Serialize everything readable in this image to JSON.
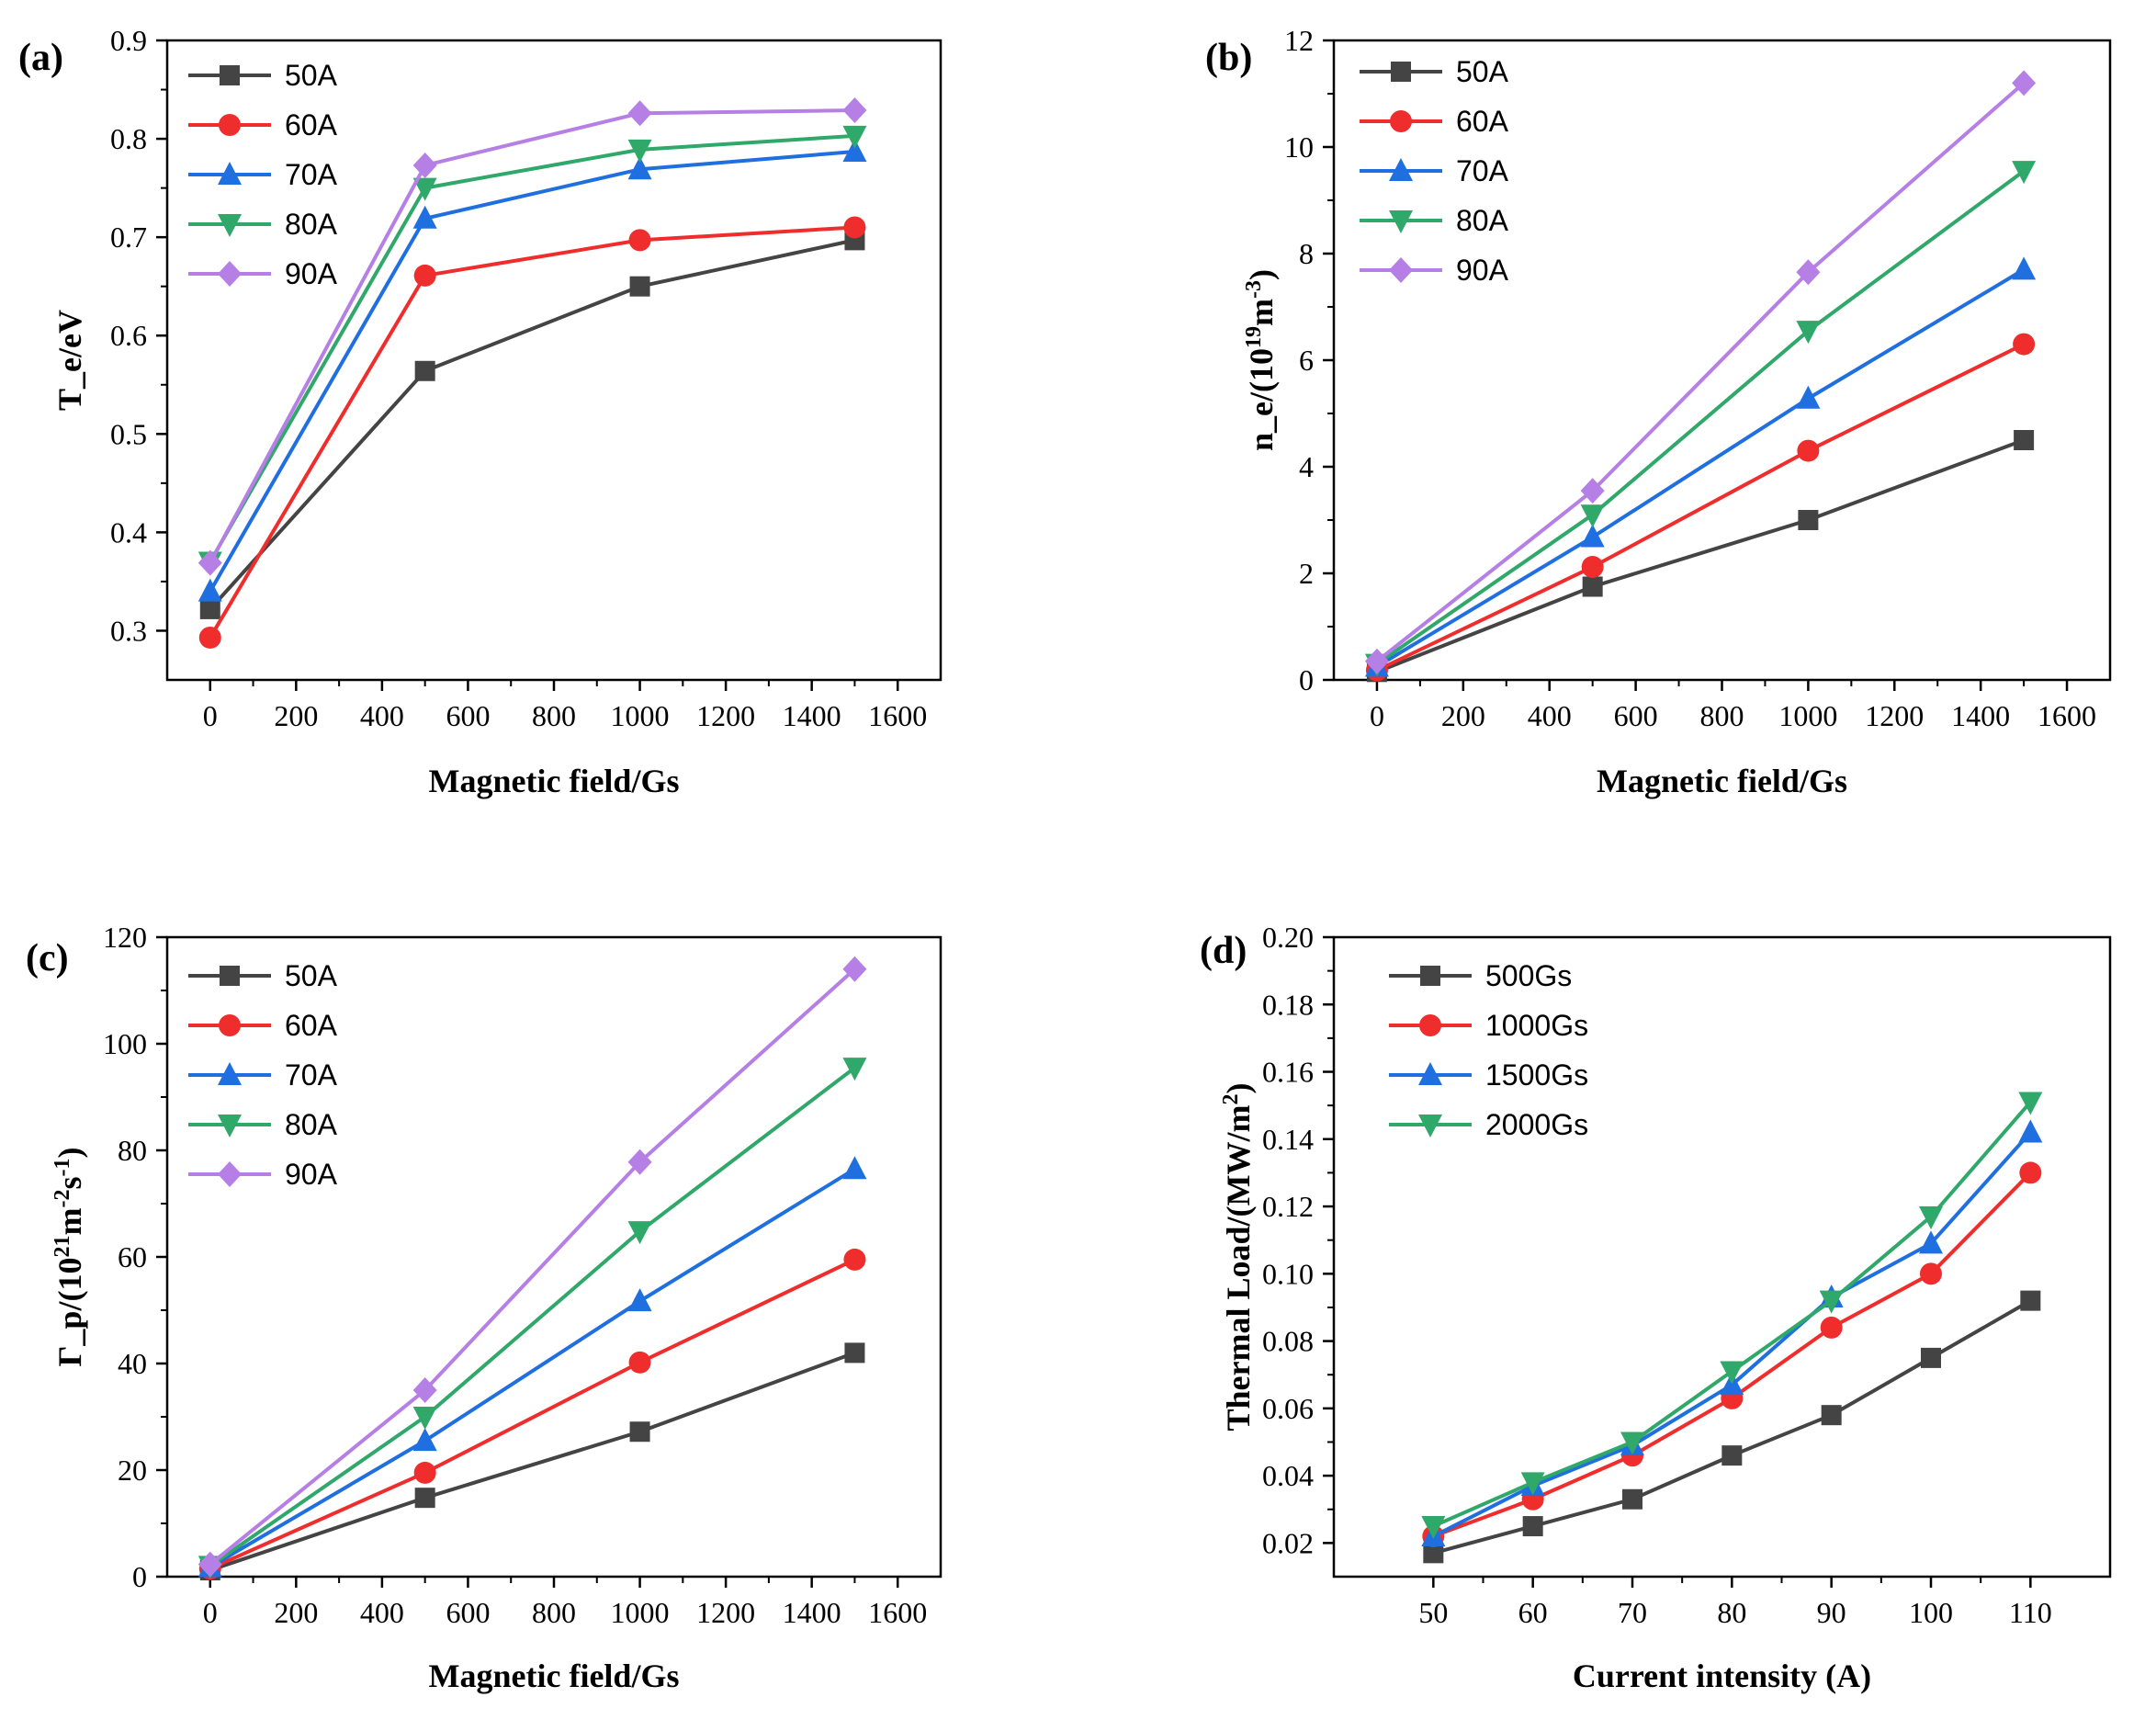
{
  "colors": {
    "50A": "#444444",
    "60A": "#ef2d2d",
    "70A": "#1f6fe0",
    "80A": "#2fa86a",
    "90A": "#b67fe6",
    "500Gs": "#444444",
    "1000Gs": "#ef2d2d",
    "1500Gs": "#1f6fe0",
    "2000Gs": "#2fa86a"
  },
  "chart_data": [
    {
      "panel": "(a)",
      "type": "line",
      "xlabel": "Magnetic field/Gs",
      "ylabel": "T_e/eV",
      "ylabel_sup": "",
      "ylabel_tail": "",
      "xlim": [
        -100,
        1700
      ],
      "ylim": [
        0.25,
        0.9
      ],
      "xticks": [
        0,
        200,
        400,
        600,
        800,
        1000,
        1200,
        1400,
        1600
      ],
      "yticks": [
        0.3,
        0.4,
        0.5,
        0.6,
        0.7,
        0.8,
        0.9
      ],
      "xtick_labels": [
        "0",
        "200",
        "400",
        "600",
        "800",
        "1000",
        "1200",
        "1400",
        "1600"
      ],
      "ytick_labels": [
        "0.3",
        "0.4",
        "0.5",
        "0.6",
        "0.7",
        "0.8",
        "0.9"
      ],
      "legend": "top-left",
      "x": [
        0,
        500,
        1000,
        1500
      ],
      "series": [
        {
          "name": "50A",
          "marker": "square",
          "color": "#444444",
          "values": [
            0.322,
            0.564,
            0.65,
            0.697
          ]
        },
        {
          "name": "60A",
          "marker": "circle",
          "color": "#ef2d2d",
          "values": [
            0.293,
            0.661,
            0.697,
            0.71
          ]
        },
        {
          "name": "70A",
          "marker": "triangle-up",
          "color": "#1f6fe0",
          "values": [
            0.34,
            0.719,
            0.769,
            0.787
          ]
        },
        {
          "name": "80A",
          "marker": "triangle-down",
          "color": "#2fa86a",
          "values": [
            0.37,
            0.75,
            0.789,
            0.803
          ]
        },
        {
          "name": "90A",
          "marker": "diamond",
          "color": "#b67fe6",
          "values": [
            0.369,
            0.773,
            0.826,
            0.829
          ]
        }
      ]
    },
    {
      "panel": "(b)",
      "type": "line",
      "xlabel": "Magnetic field/Gs",
      "ylabel": "n_e/(10",
      "ylabel_sup": "19",
      "ylabel_tail": "m",
      "ylabel_sup2": "-3",
      "ylabel_end": ")",
      "xlim": [
        -100,
        1700
      ],
      "ylim": [
        0,
        12
      ],
      "xticks": [
        0,
        200,
        400,
        600,
        800,
        1000,
        1200,
        1400,
        1600
      ],
      "yticks": [
        0,
        2,
        4,
        6,
        8,
        10,
        12
      ],
      "xtick_labels": [
        "0",
        "200",
        "400",
        "600",
        "800",
        "1000",
        "1200",
        "1400",
        "1600"
      ],
      "ytick_labels": [
        "0",
        "2",
        "4",
        "6",
        "8",
        "10",
        "12"
      ],
      "legend": "top-left",
      "x": [
        0,
        500,
        1000,
        1500
      ],
      "series": [
        {
          "name": "50A",
          "marker": "square",
          "color": "#444444",
          "values": [
            0.15,
            1.75,
            3.0,
            4.5
          ]
        },
        {
          "name": "60A",
          "marker": "circle",
          "color": "#ef2d2d",
          "values": [
            0.18,
            2.12,
            4.3,
            6.3
          ]
        },
        {
          "name": "70A",
          "marker": "triangle-up",
          "color": "#1f6fe0",
          "values": [
            0.25,
            2.68,
            5.28,
            7.7
          ]
        },
        {
          "name": "80A",
          "marker": "triangle-down",
          "color": "#2fa86a",
          "values": [
            0.3,
            3.1,
            6.55,
            9.55
          ]
        },
        {
          "name": "90A",
          "marker": "diamond",
          "color": "#b67fe6",
          "values": [
            0.35,
            3.55,
            7.65,
            11.2
          ]
        }
      ]
    },
    {
      "panel": "(c)",
      "type": "line",
      "xlabel": "Magnetic field/Gs",
      "ylabel": "Γ_p/(10",
      "ylabel_sup": "21",
      "ylabel_tail": "m",
      "ylabel_sup2": "-2",
      "ylabel_mid": "s",
      "ylabel_sup3": "-1",
      "ylabel_end": ")",
      "xlim": [
        -100,
        1700
      ],
      "ylim": [
        0,
        120
      ],
      "xticks": [
        0,
        200,
        400,
        600,
        800,
        1000,
        1200,
        1400,
        1600
      ],
      "yticks": [
        0,
        20,
        40,
        60,
        80,
        100,
        120
      ],
      "xtick_labels": [
        "0",
        "200",
        "400",
        "600",
        "800",
        "1000",
        "1200",
        "1400",
        "1600"
      ],
      "ytick_labels": [
        "0",
        "20",
        "40",
        "60",
        "80",
        "100",
        "120"
      ],
      "legend": "top-left",
      "x": [
        0,
        500,
        1000,
        1500
      ],
      "series": [
        {
          "name": "50A",
          "marker": "square",
          "color": "#444444",
          "values": [
            1.2,
            14.8,
            27.2,
            42.0
          ]
        },
        {
          "name": "60A",
          "marker": "circle",
          "color": "#ef2d2d",
          "values": [
            1.5,
            19.5,
            40.2,
            59.5
          ]
        },
        {
          "name": "70A",
          "marker": "triangle-up",
          "color": "#1f6fe0",
          "values": [
            1.8,
            25.5,
            51.7,
            76.5
          ]
        },
        {
          "name": "80A",
          "marker": "triangle-down",
          "color": "#2fa86a",
          "values": [
            2.0,
            30.0,
            64.8,
            95.5
          ]
        },
        {
          "name": "90A",
          "marker": "diamond",
          "color": "#b67fe6",
          "values": [
            2.3,
            35.0,
            77.8,
            114.0
          ]
        }
      ]
    },
    {
      "panel": "(d)",
      "type": "line",
      "xlabel": "Current intensity (A)",
      "ylabel": "Thermal Load/(MW/m",
      "ylabel_sup": "2",
      "ylabel_tail": ")",
      "xlim": [
        40,
        118
      ],
      "ylim": [
        0.01,
        0.2
      ],
      "xticks": [
        50,
        60,
        70,
        80,
        90,
        100,
        110
      ],
      "yticks": [
        0.02,
        0.04,
        0.06,
        0.08,
        0.1,
        0.12,
        0.14,
        0.16,
        0.18,
        0.2
      ],
      "xtick_labels": [
        "50",
        "60",
        "70",
        "80",
        "90",
        "100",
        "110"
      ],
      "ytick_labels": [
        "0.02",
        "0.04",
        "0.06",
        "0.08",
        "0.10",
        "0.12",
        "0.14",
        "0.16",
        "0.18",
        "0.20"
      ],
      "legend": "top-left",
      "x": [
        50,
        60,
        70,
        80,
        90,
        100,
        110
      ],
      "series": [
        {
          "name": "500Gs",
          "marker": "square",
          "color": "#444444",
          "values": [
            0.017,
            0.025,
            0.033,
            0.046,
            0.058,
            0.075,
            0.092
          ]
        },
        {
          "name": "1000Gs",
          "marker": "circle",
          "color": "#ef2d2d",
          "values": [
            0.022,
            0.033,
            0.046,
            0.063,
            0.084,
            0.1,
            0.13
          ]
        },
        {
          "name": "1500Gs",
          "marker": "triangle-up",
          "color": "#1f6fe0",
          "values": [
            0.022,
            0.037,
            0.049,
            0.067,
            0.093,
            0.109,
            0.142
          ]
        },
        {
          "name": "2000Gs",
          "marker": "triangle-down",
          "color": "#2fa86a",
          "values": [
            0.025,
            0.038,
            0.05,
            0.071,
            0.092,
            0.117,
            0.151
          ]
        }
      ]
    }
  ]
}
